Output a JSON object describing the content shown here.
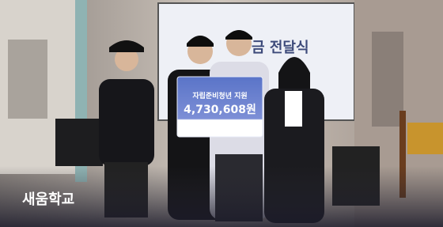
{
  "screen_text": "금 전달식",
  "board": {
    "title": "자립준비청년 지원",
    "amount": "4,730,608원"
  },
  "caption": "새움학교"
}
